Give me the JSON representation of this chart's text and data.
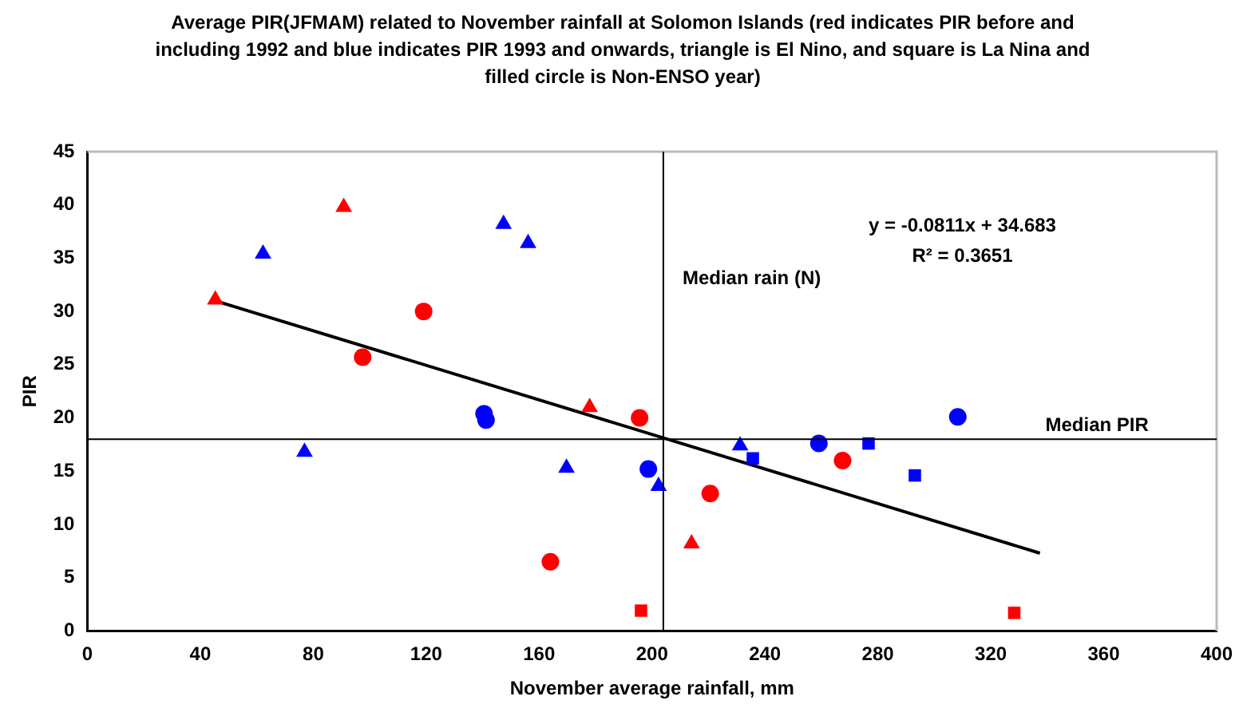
{
  "chart_data": {
    "type": "scatter",
    "title": "Average PIR(JFMAM) related to November rainfall at Solomon Islands (red indicates PIR before and including 1992 and blue indicates PIR  1993 and onwards, triangle is El Nino, and square is La Nina and filled circle is Non-ENSO year)",
    "xlabel": "November average rainfall, mm",
    "ylabel": "PIR",
    "xlim": [
      0,
      400
    ],
    "xticks": [
      0,
      40,
      80,
      120,
      160,
      200,
      240,
      280,
      320,
      360,
      400
    ],
    "ylim": [
      0,
      45
    ],
    "yticks": [
      0,
      5,
      10,
      15,
      20,
      25,
      30,
      35,
      40,
      45
    ],
    "grid": false,
    "legend": false,
    "series": [
      {
        "color": "#ff0000",
        "marker": "triangle",
        "x": [
          45.3,
          90.8,
          177.9,
          214
        ],
        "values": [
          31.1,
          39.8,
          21.0,
          8.2
        ]
      },
      {
        "color": "#ff0000",
        "marker": "circle",
        "x": [
          119.1,
          97.5,
          195.6,
          220.6,
          164,
          267.5
        ],
        "values": [
          30.0,
          25.7,
          20.0,
          12.9,
          6.5,
          16.0
        ]
      },
      {
        "color": "#ff0000",
        "marker": "square",
        "x": [
          196.1,
          328.3
        ],
        "values": [
          1.9,
          1.7
        ]
      },
      {
        "color": "#0000ff",
        "marker": "triangle",
        "x": [
          62.2,
          76.9,
          147.4,
          156.1,
          169.7,
          202.3,
          231.2
        ],
        "values": [
          35.4,
          16.8,
          38.2,
          36.4,
          15.3,
          13.6,
          17.4
        ]
      },
      {
        "color": "#0000ff",
        "marker": "circle",
        "x": [
          140.5,
          141.2,
          198.7,
          259.1,
          308.3
        ],
        "values": [
          20.4,
          19.8,
          15.2,
          17.6,
          20.1
        ]
      },
      {
        "color": "#0000ff",
        "marker": "square",
        "x": [
          235.7,
          276.7,
          293.1
        ],
        "values": [
          16.2,
          17.6,
          14.6
        ]
      },
      {
        "type": "line",
        "color": "#000000",
        "marker": "none",
        "line_style": "solid",
        "x": [
          45.3,
          337.4
        ],
        "values": [
          31.0,
          7.3
        ]
      }
    ],
    "ref_lines": [
      {
        "axis": "x",
        "value": 204,
        "label": "Median rain (N)",
        "color": "#000000"
      },
      {
        "axis": "y",
        "value": 18,
        "label": "Median PIR",
        "color": "#000000"
      }
    ],
    "annotations": [
      "y = -0.0811x + 34.683",
      "R² = 0.3651"
    ]
  }
}
